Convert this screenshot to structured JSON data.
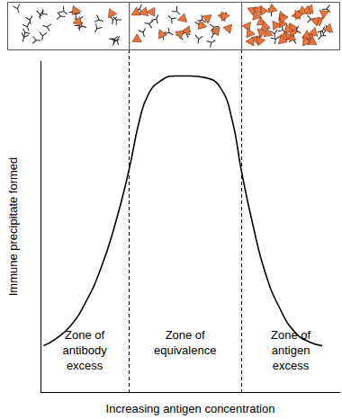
{
  "chart_data": {
    "type": "line",
    "x_label": "Increasing antigen concentration",
    "y_label": "Immune precipitate formed",
    "x": [
      1,
      5,
      10,
      15,
      20,
      25,
      29.5,
      33,
      36,
      40,
      45,
      50,
      55,
      60,
      64,
      67,
      71,
      75,
      80,
      85,
      90,
      94
    ],
    "values": [
      14,
      16,
      20,
      27,
      37,
      51,
      67,
      82,
      90,
      94,
      95.5,
      95.5,
      95,
      92,
      82,
      67,
      50,
      36,
      25,
      18,
      15,
      14
    ],
    "color": "#000000",
    "line_style": "solid",
    "xlim": [
      0,
      100
    ],
    "ylim": [
      0,
      100
    ],
    "xticks": [],
    "yticks": [],
    "tick_labels": false,
    "grid": false,
    "zones": [
      {
        "label": "Zone of antibody excess",
        "from": 0,
        "to": 29.5
      },
      {
        "label": "Zone of equivalence",
        "from": 29.5,
        "to": 67
      },
      {
        "label": "Zone of antigen excess",
        "from": 67,
        "to": 100
      }
    ]
  }
}
